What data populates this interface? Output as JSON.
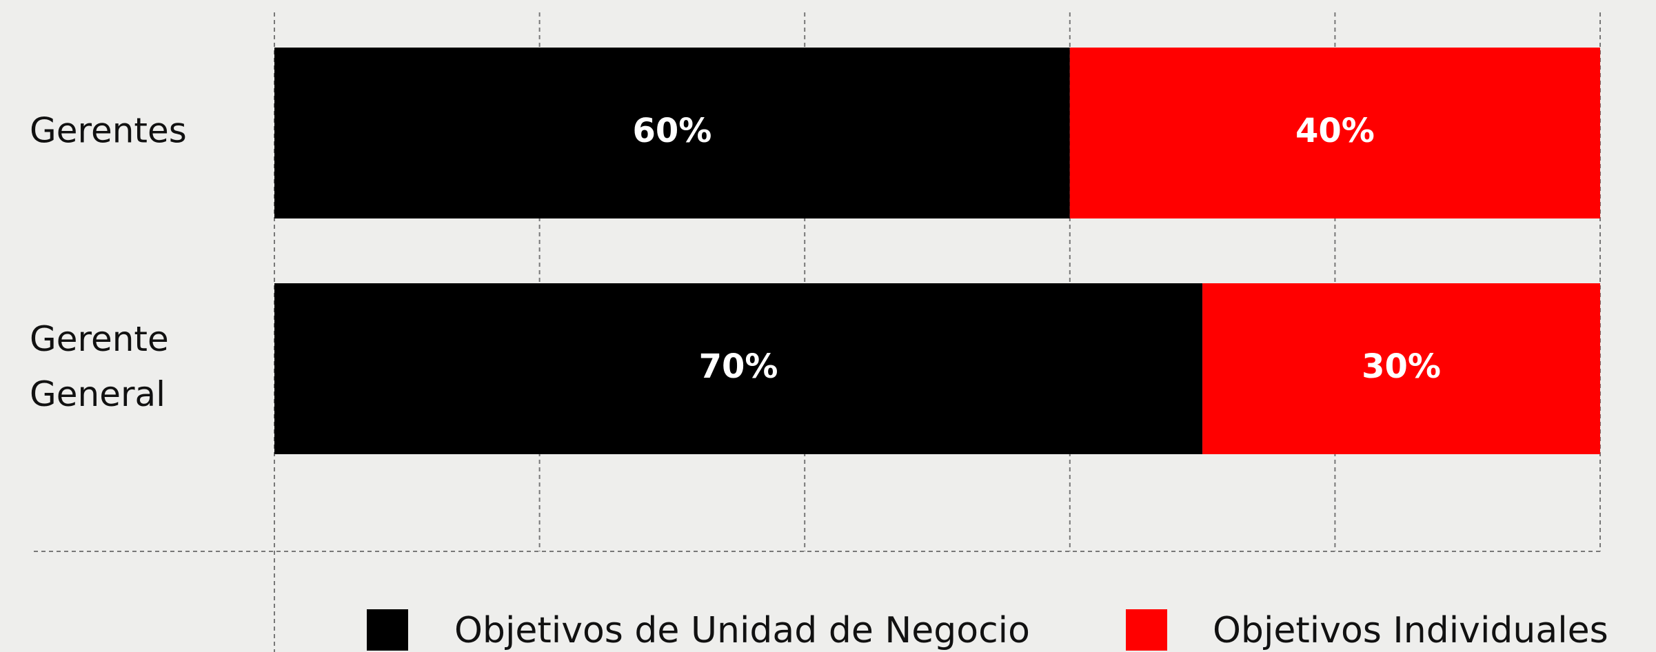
{
  "chart_data": {
    "type": "stacked_barh",
    "categories": [
      "Gerentes",
      "Gerente General"
    ],
    "series": [
      {
        "name": "Objetivos de Unidad de Negocio",
        "color": "#000000",
        "values": [
          60,
          70
        ],
        "value_labels": [
          "60%",
          "70%"
        ]
      },
      {
        "name": "Objetivos Individuales",
        "color": "#ff0000",
        "values": [
          40,
          30
        ],
        "value_labels": [
          "40%",
          "30%"
        ]
      }
    ],
    "xlim": [
      0,
      100
    ],
    "xticks": [
      0,
      20,
      40,
      60,
      80,
      100
    ],
    "grid": true,
    "legend": "bottom"
  }
}
